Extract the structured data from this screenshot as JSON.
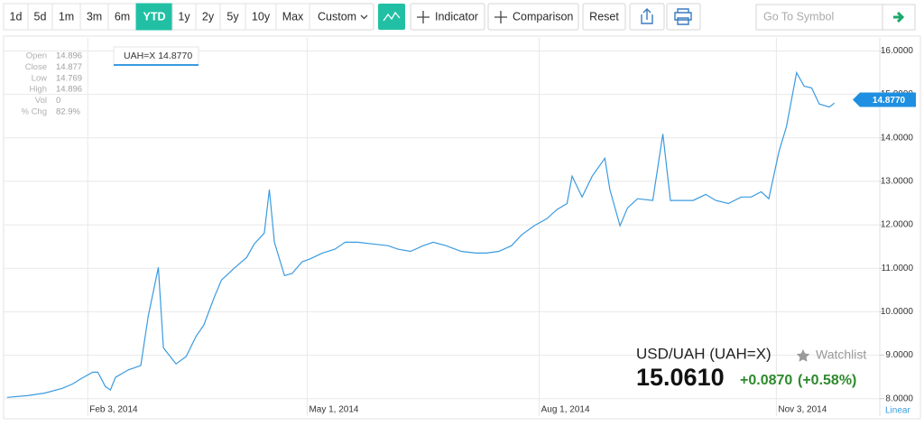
{
  "toolbar": {
    "ranges": [
      "1d",
      "5d",
      "1m",
      "3m",
      "6m",
      "YTD",
      "1y",
      "2y",
      "5y",
      "10y",
      "Max"
    ],
    "active_range": "YTD",
    "custom": "Custom",
    "indicator": "Indicator",
    "comparison": "Comparison",
    "reset": "Reset",
    "search_placeholder": "Go To Symbol"
  },
  "chart_data": {
    "type": "line",
    "color": "#3a9be0",
    "grid": true,
    "scale": "Linear",
    "x": [
      "2014-01-02",
      "2014-01-10",
      "2014-01-17",
      "2014-01-24",
      "2014-01-28",
      "2014-01-31",
      "2014-02-05",
      "2014-02-07",
      "2014-02-10",
      "2014-02-12",
      "2014-02-14",
      "2014-02-19",
      "2014-02-24",
      "2014-02-27",
      "2014-03-03",
      "2014-03-05",
      "2014-03-10",
      "2014-03-14",
      "2014-03-18",
      "2014-03-21",
      "2014-03-25",
      "2014-03-28",
      "2014-04-02",
      "2014-04-07",
      "2014-04-10",
      "2014-04-14",
      "2014-04-16",
      "2014-04-18",
      "2014-04-22",
      "2014-04-25",
      "2014-04-29",
      "2014-05-02",
      "2014-05-07",
      "2014-05-12",
      "2014-05-16",
      "2014-05-21",
      "2014-05-27",
      "2014-06-02",
      "2014-06-06",
      "2014-06-11",
      "2014-06-16",
      "2014-06-20",
      "2014-06-25",
      "2014-07-01",
      "2014-07-07",
      "2014-07-11",
      "2014-07-16",
      "2014-07-21",
      "2014-07-25",
      "2014-07-30",
      "2014-08-04",
      "2014-08-08",
      "2014-08-12",
      "2014-08-14",
      "2014-08-18",
      "2014-08-22",
      "2014-08-27",
      "2014-08-29",
      "2014-09-02",
      "2014-09-05",
      "2014-09-09",
      "2014-09-15",
      "2014-09-19",
      "2014-09-22",
      "2014-09-26",
      "2014-10-01",
      "2014-10-06",
      "2014-10-10",
      "2014-10-15",
      "2014-10-20",
      "2014-10-24",
      "2014-10-28",
      "2014-10-31",
      "2014-11-04",
      "2014-11-07",
      "2014-11-11",
      "2014-11-14",
      "2014-11-17",
      "2014-11-20",
      "2014-11-24",
      "2014-11-26"
    ],
    "values": [
      8.03,
      8.07,
      8.13,
      8.24,
      8.34,
      8.45,
      8.61,
      8.61,
      8.28,
      8.2,
      8.49,
      8.66,
      8.76,
      9.9,
      11.02,
      9.17,
      8.8,
      8.97,
      9.44,
      9.69,
      10.31,
      10.73,
      11.0,
      11.25,
      11.56,
      11.81,
      12.81,
      11.6,
      10.83,
      10.88,
      11.15,
      11.21,
      11.35,
      11.44,
      11.6,
      11.6,
      11.56,
      11.52,
      11.44,
      11.39,
      11.52,
      11.6,
      11.52,
      11.39,
      11.35,
      11.35,
      11.39,
      11.52,
      11.77,
      11.98,
      12.14,
      12.35,
      12.49,
      13.12,
      12.64,
      13.12,
      13.53,
      12.81,
      11.98,
      12.39,
      12.6,
      12.56,
      14.09,
      12.56,
      12.56,
      12.56,
      12.7,
      12.56,
      12.49,
      12.64,
      12.64,
      12.76,
      12.6,
      13.68,
      14.26,
      15.5,
      15.19,
      15.15,
      14.78,
      14.71,
      14.8
    ],
    "xlim": [
      "2014-01-01",
      "2014-12-14"
    ],
    "xticks": [
      {
        "value": "2014-02-03",
        "label": "Feb 3, 2014"
      },
      {
        "value": "2014-05-01",
        "label": "May 1, 2014"
      },
      {
        "value": "2014-08-01",
        "label": "Aug 1, 2014"
      },
      {
        "value": "2014-11-03",
        "label": "Nov 3, 2014"
      }
    ],
    "ylim": [
      7.6,
      16.3
    ],
    "yticks": [
      {
        "value": 8,
        "label": "8.0000"
      },
      {
        "value": 9,
        "label": "9.0000"
      },
      {
        "value": 10,
        "label": "10.0000"
      },
      {
        "value": 11,
        "label": "11.0000"
      },
      {
        "value": 12,
        "label": "12.0000"
      },
      {
        "value": 13,
        "label": "13.0000"
      },
      {
        "value": 14,
        "label": "14.0000"
      },
      {
        "value": 15,
        "label": "15.0000"
      },
      {
        "value": 16,
        "label": "16.0000"
      }
    ],
    "last_price": {
      "value": 14.877,
      "label": "14.8770"
    },
    "tooltip": "UAH=X 14.8770"
  },
  "ohlc": {
    "labels": [
      "Open",
      "Close",
      "Low",
      "High",
      "Vol",
      "% Chg"
    ],
    "values": [
      "14.896",
      "14.877",
      "14.769",
      "14.896",
      "0",
      "82.9%"
    ]
  },
  "quote": {
    "name": "USD/UAH (UAH=X)",
    "watchlist": "Watchlist",
    "price": "15.0610",
    "change": "+0.0870",
    "change_pct": "(+0.58%)"
  }
}
